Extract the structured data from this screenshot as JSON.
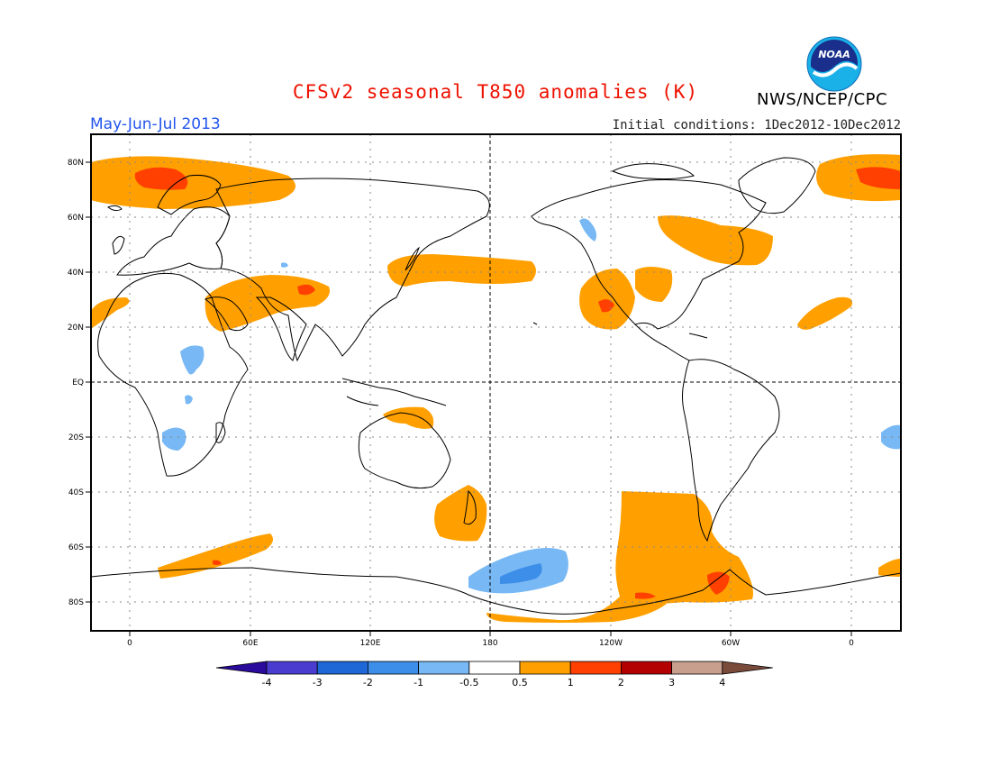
{
  "header": {
    "title": "CFSv2 seasonal T850 anomalies (K)",
    "period": "May-Jun-Jul 2013",
    "initial_conditions": "Initial conditions: 1Dec2012-10Dec2012",
    "agency": "NWS/NCEP/CPC",
    "logo_text": "NOAA"
  },
  "map": {
    "lat_labels": [
      "80N",
      "60N",
      "40N",
      "20N",
      "EQ",
      "20S",
      "40S",
      "60S",
      "80S"
    ],
    "lon_labels": [
      "0",
      "60E",
      "120E",
      "180",
      "120W",
      "60W",
      "0"
    ]
  },
  "colorbar": {
    "labels": [
      "-4",
      "-3",
      "-2",
      "-1",
      "-0.5",
      "0.5",
      "1",
      "2",
      "3",
      "4"
    ],
    "colors": [
      "#2a0b9c",
      "#4a3ccf",
      "#1f66d6",
      "#3c8ee8",
      "#78b8f4",
      "#ffffff",
      "#ffa000",
      "#ff4000",
      "#b30000",
      "#c89e8c",
      "#7a4a3a"
    ]
  },
  "colors": {
    "warm_0p5_1": "#ffa000",
    "warm_1_2": "#ff4000",
    "cold_m1_m0p5": "#78b8f4",
    "cold_m2_m1": "#3c8ee8",
    "title_red": "#ee1100",
    "period_blue": "#2255ee"
  }
}
